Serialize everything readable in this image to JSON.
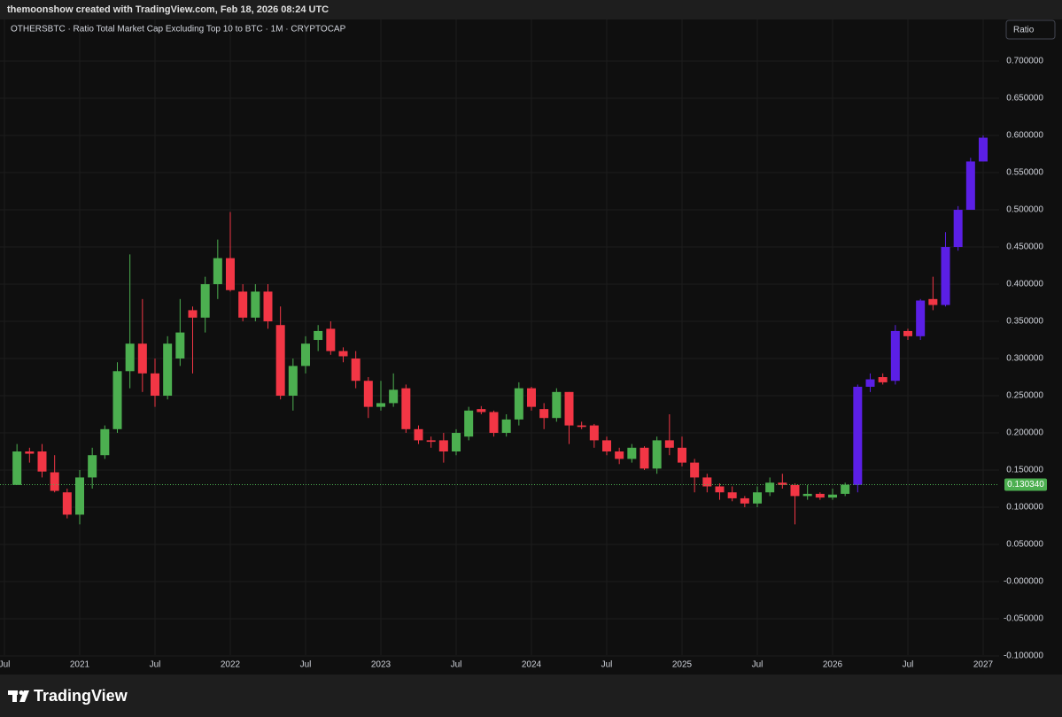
{
  "header": "themoonshow created with TradingView.com, Feb 18, 2026 08:24 UTC",
  "footer": "TradingView",
  "chart_data": {
    "type": "candlestick",
    "title": "OTHERSBTC · Ratio Total Market Cap Excluding Top 10 to BTC · 1M · CRYPTOCAP",
    "scale_button": "Ratio",
    "ylim": [
      -0.125,
      0.756
    ],
    "yticks": [
      {
        "value": 0.7,
        "label": "0.700000"
      },
      {
        "value": 0.65,
        "label": "0.650000"
      },
      {
        "value": 0.6,
        "label": "0.600000"
      },
      {
        "value": 0.55,
        "label": "0.550000"
      },
      {
        "value": 0.5,
        "label": "0.500000"
      },
      {
        "value": 0.45,
        "label": "0.450000"
      },
      {
        "value": 0.4,
        "label": "0.400000"
      },
      {
        "value": 0.35,
        "label": "0.350000"
      },
      {
        "value": 0.3,
        "label": "0.300000"
      },
      {
        "value": 0.25,
        "label": "0.250000"
      },
      {
        "value": 0.2,
        "label": "0.200000"
      },
      {
        "value": 0.15,
        "label": "0.150000"
      },
      {
        "value": 0.1,
        "label": "0.100000"
      },
      {
        "value": 0.05,
        "label": "0.050000"
      },
      {
        "value": 0,
        "label": "-0.000000"
      },
      {
        "value": -0.05,
        "label": "-0.050000"
      },
      {
        "value": -0.1,
        "label": "-0.100000"
      }
    ],
    "xticks": [
      {
        "value": "2020-07",
        "label": "Jul"
      },
      {
        "value": "2021-01",
        "label": "2021"
      },
      {
        "value": "2021-07",
        "label": "Jul"
      },
      {
        "value": "2022-01",
        "label": "2022"
      },
      {
        "value": "2022-07",
        "label": "Jul"
      },
      {
        "value": "2023-01",
        "label": "2023"
      },
      {
        "value": "2023-07",
        "label": "Jul"
      },
      {
        "value": "2024-01",
        "label": "2024"
      },
      {
        "value": "2024-07",
        "label": "Jul"
      },
      {
        "value": "2025-01",
        "label": "2025"
      },
      {
        "value": "2025-07",
        "label": "Jul"
      },
      {
        "value": "2026-01",
        "label": "2026"
      },
      {
        "value": "2026-07",
        "label": "Jul"
      },
      {
        "value": "2027-01",
        "label": "2027"
      }
    ],
    "grid": true,
    "last_price": {
      "value": 0.13034,
      "label": "0.130340",
      "color": "#4caf50"
    },
    "series": [
      {
        "color_up": "#4caf50",
        "color_down": "#f23645",
        "x": [
          "2020-08",
          "2020-09",
          "2020-10",
          "2020-11",
          "2020-12",
          "2021-01",
          "2021-02",
          "2021-03",
          "2021-04",
          "2021-05",
          "2021-06",
          "2021-07",
          "2021-08",
          "2021-09",
          "2021-10",
          "2021-11",
          "2021-12",
          "2022-01",
          "2022-02",
          "2022-03",
          "2022-04",
          "2022-05",
          "2022-06",
          "2022-07",
          "2022-08",
          "2022-09",
          "2022-10",
          "2022-11",
          "2022-12",
          "2023-01",
          "2023-02",
          "2023-03",
          "2023-04",
          "2023-05",
          "2023-06",
          "2023-07",
          "2023-08",
          "2023-09",
          "2023-10",
          "2023-11",
          "2023-12",
          "2024-01",
          "2024-02",
          "2024-03",
          "2024-04",
          "2024-05",
          "2024-06",
          "2024-07",
          "2024-08",
          "2024-09",
          "2024-10",
          "2024-11",
          "2024-12",
          "2025-01",
          "2025-02",
          "2025-03",
          "2025-04",
          "2025-05",
          "2025-06",
          "2025-07",
          "2025-08",
          "2025-09",
          "2025-10",
          "2025-11",
          "2025-12",
          "2026-01",
          "2026-02"
        ],
        "open": [
          0.13,
          0.175,
          0.175,
          0.147,
          0.12,
          0.09,
          0.14,
          0.17,
          0.205,
          0.283,
          0.32,
          0.28,
          0.25,
          0.3,
          0.365,
          0.355,
          0.4,
          0.435,
          0.39,
          0.355,
          0.39,
          0.345,
          0.25,
          0.29,
          0.325,
          0.34,
          0.31,
          0.3,
          0.27,
          0.235,
          0.24,
          0.26,
          0.205,
          0.19,
          0.19,
          0.175,
          0.195,
          0.232,
          0.228,
          0.2,
          0.218,
          0.26,
          0.232,
          0.22,
          0.255,
          0.21,
          0.21,
          0.19,
          0.175,
          0.165,
          0.18,
          0.152,
          0.19,
          0.18,
          0.16,
          0.14,
          0.128,
          0.12,
          0.112,
          0.105,
          0.12,
          0.133,
          0.13,
          0.115,
          0.118,
          0.113,
          0.118
        ],
        "high": [
          0.185,
          0.18,
          0.185,
          0.17,
          0.125,
          0.15,
          0.18,
          0.21,
          0.295,
          0.44,
          0.38,
          0.3,
          0.33,
          0.38,
          0.37,
          0.41,
          0.46,
          0.497,
          0.4,
          0.4,
          0.4,
          0.37,
          0.3,
          0.33,
          0.345,
          0.35,
          0.315,
          0.31,
          0.275,
          0.27,
          0.28,
          0.265,
          0.21,
          0.195,
          0.2,
          0.205,
          0.235,
          0.236,
          0.23,
          0.225,
          0.268,
          0.262,
          0.24,
          0.26,
          0.255,
          0.215,
          0.212,
          0.195,
          0.18,
          0.185,
          0.182,
          0.195,
          0.225,
          0.195,
          0.165,
          0.145,
          0.132,
          0.128,
          0.115,
          0.128,
          0.14,
          0.145,
          0.132,
          0.13,
          0.12,
          0.125,
          0.133
        ],
        "low": [
          0.13,
          0.16,
          0.14,
          0.12,
          0.085,
          0.077,
          0.125,
          0.165,
          0.2,
          0.26,
          0.255,
          0.235,
          0.245,
          0.29,
          0.28,
          0.335,
          0.38,
          0.39,
          0.35,
          0.35,
          0.34,
          0.245,
          0.23,
          0.28,
          0.31,
          0.305,
          0.295,
          0.26,
          0.22,
          0.23,
          0.235,
          0.2,
          0.185,
          0.18,
          0.16,
          0.17,
          0.19,
          0.225,
          0.195,
          0.195,
          0.21,
          0.23,
          0.205,
          0.215,
          0.185,
          0.205,
          0.18,
          0.17,
          0.158,
          0.16,
          0.15,
          0.145,
          0.17,
          0.155,
          0.12,
          0.12,
          0.11,
          0.108,
          0.1,
          0.1,
          0.115,
          0.125,
          0.077,
          0.11,
          0.11,
          0.11,
          0.115
        ],
        "close": [
          0.175,
          0.172,
          0.148,
          0.122,
          0.09,
          0.14,
          0.17,
          0.205,
          0.283,
          0.32,
          0.28,
          0.25,
          0.32,
          0.335,
          0.355,
          0.4,
          0.435,
          0.392,
          0.355,
          0.39,
          0.35,
          0.25,
          0.29,
          0.32,
          0.337,
          0.31,
          0.303,
          0.27,
          0.235,
          0.24,
          0.258,
          0.205,
          0.19,
          0.188,
          0.175,
          0.2,
          0.23,
          0.228,
          0.2,
          0.218,
          0.26,
          0.235,
          0.22,
          0.255,
          0.21,
          0.208,
          0.19,
          0.175,
          0.165,
          0.18,
          0.152,
          0.19,
          0.18,
          0.16,
          0.14,
          0.128,
          0.12,
          0.112,
          0.105,
          0.12,
          0.133,
          0.13,
          0.115,
          0.118,
          0.113,
          0.117,
          0.13034
        ]
      },
      {
        "color_up": "#5b1fe6",
        "color_down": "#f23645",
        "x": [
          "2026-03",
          "2026-04",
          "2026-05",
          "2026-06",
          "2026-07",
          "2026-08",
          "2026-09",
          "2026-10",
          "2026-11",
          "2026-12",
          "2027-01"
        ],
        "open": [
          0.13,
          0.262,
          0.275,
          0.27,
          0.337,
          0.33,
          0.38,
          0.372,
          0.45,
          0.5,
          0.565
        ],
        "high": [
          0.265,
          0.28,
          0.28,
          0.345,
          0.34,
          0.38,
          0.41,
          0.47,
          0.505,
          0.57,
          0.6
        ],
        "low": [
          0.12,
          0.255,
          0.265,
          0.265,
          0.325,
          0.325,
          0.365,
          0.37,
          0.445,
          0.5,
          0.565
        ],
        "close": [
          0.262,
          0.272,
          0.268,
          0.337,
          0.33,
          0.378,
          0.372,
          0.45,
          0.5,
          0.565,
          0.597
        ]
      }
    ]
  }
}
